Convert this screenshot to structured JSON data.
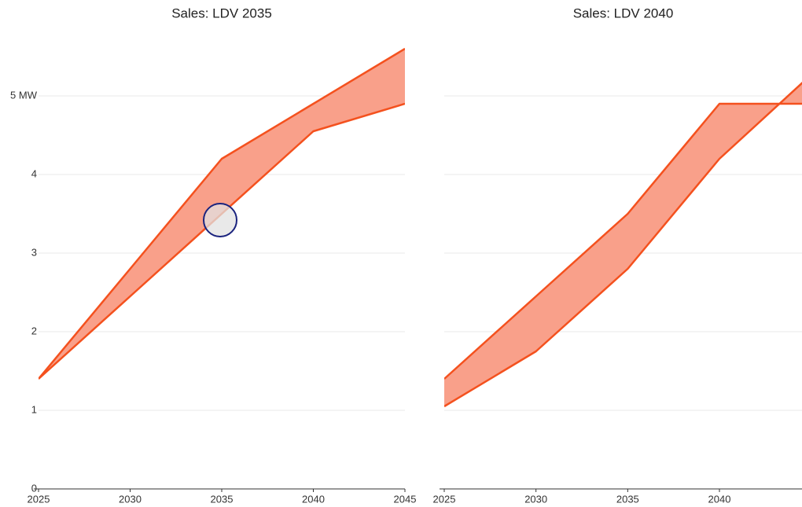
{
  "chart_data": [
    {
      "type": "band",
      "title": "Sales: LDV 2035",
      "x": [
        2025,
        2030,
        2035,
        2040,
        2045
      ],
      "series": [
        {
          "values": [
            1.4,
            2.8,
            4.2,
            4.9,
            5.6
          ]
        },
        {
          "values": [
            1.4,
            2.45,
            3.5,
            4.55,
            4.9
          ]
        }
      ],
      "color": "#f4511e",
      "fill": "#f9a08a",
      "xlim": [
        2025,
        2045
      ],
      "xticks": [
        2025,
        2030,
        2035,
        2040,
        2045
      ],
      "ylim": [
        0,
        5.8
      ],
      "yticks": [
        0,
        1,
        2,
        3,
        4,
        {
          "value": 5,
          "label": "5 MW"
        }
      ],
      "show_ytick_labels": true,
      "grid": true
    },
    {
      "type": "band",
      "title": "Sales: LDV 2040",
      "x": [
        2025,
        2030,
        2035,
        2040,
        2045
      ],
      "series": [
        {
          "values": [
            1.4,
            2.45,
            3.5,
            4.9,
            4.9
          ]
        },
        {
          "values": [
            1.05,
            1.75,
            2.8,
            4.2,
            5.27
          ]
        }
      ],
      "color": "#f4511e",
      "fill": "#f9a08a",
      "xlim": [
        2025,
        2044.5
      ],
      "xticks": [
        2025,
        2030,
        2035,
        2040
      ],
      "ylim": [
        0,
        5.8
      ],
      "yticks": [
        0,
        1,
        2,
        3,
        4,
        5
      ],
      "show_ytick_labels": false,
      "grid": true
    }
  ]
}
